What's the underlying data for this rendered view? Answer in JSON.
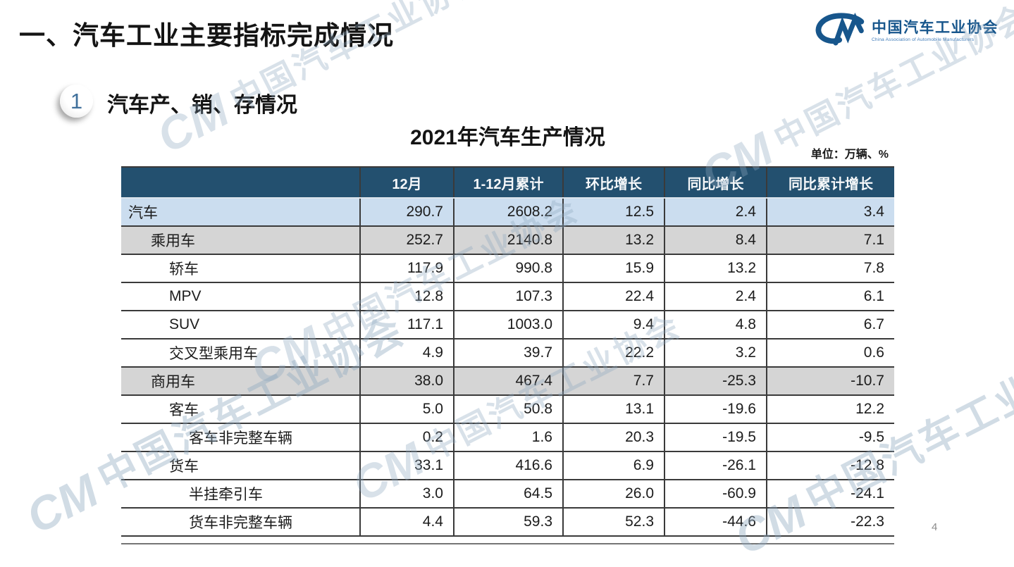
{
  "slide": {
    "title": "一、汽车工业主要指标完成情况",
    "section_number": "1",
    "section_title": "汽车产、销、存情况",
    "page_number": "4"
  },
  "logo": {
    "mark": "CM",
    "name_cn": "中国汽车工业协会",
    "name_en": "China Association of Automobile Manufacturers"
  },
  "watermark": {
    "mark": "CM",
    "text": "中国汽车工业协会"
  },
  "table": {
    "title": "2021年汽车生产情况",
    "unit_note": "单位：万辆、%",
    "columns": [
      "",
      "12月",
      "1-12月累计",
      "环比增长",
      "同比增长",
      "同比累计增长"
    ],
    "rows": [
      {
        "label": "汽车",
        "indent": 0,
        "style": "blue",
        "values": [
          "290.7",
          "2608.2",
          "12.5",
          "2.4",
          "3.4"
        ]
      },
      {
        "label": "乘用车",
        "indent": 1,
        "style": "gray",
        "values": [
          "252.7",
          "2140.8",
          "13.2",
          "8.4",
          "7.1"
        ]
      },
      {
        "label": "轿车",
        "indent": 2,
        "style": "plain",
        "values": [
          "117.9",
          "990.8",
          "15.9",
          "13.2",
          "7.8"
        ]
      },
      {
        "label": "MPV",
        "indent": 2,
        "style": "plain",
        "values": [
          "12.8",
          "107.3",
          "22.4",
          "2.4",
          "6.1"
        ]
      },
      {
        "label": "SUV",
        "indent": 2,
        "style": "plain",
        "values": [
          "117.1",
          "1003.0",
          "9.4",
          "4.8",
          "6.7"
        ]
      },
      {
        "label": "交叉型乘用车",
        "indent": 2,
        "style": "plain",
        "values": [
          "4.9",
          "39.7",
          "22.2",
          "3.2",
          "0.6"
        ]
      },
      {
        "label": "商用车",
        "indent": 1,
        "style": "gray",
        "values": [
          "38.0",
          "467.4",
          "7.7",
          "-25.3",
          "-10.7"
        ]
      },
      {
        "label": "客车",
        "indent": 2,
        "style": "plain",
        "values": [
          "5.0",
          "50.8",
          "13.1",
          "-19.6",
          "12.2"
        ]
      },
      {
        "label": "客车非完整车辆",
        "indent": 3,
        "style": "plain",
        "values": [
          "0.2",
          "1.6",
          "20.3",
          "-19.5",
          "-9.5"
        ]
      },
      {
        "label": "货车",
        "indent": 2,
        "style": "plain",
        "values": [
          "33.1",
          "416.6",
          "6.9",
          "-26.1",
          "-12.8"
        ]
      },
      {
        "label": "半挂牵引车",
        "indent": 3,
        "style": "plain",
        "values": [
          "3.0",
          "64.5",
          "26.0",
          "-60.9",
          "-24.1"
        ]
      },
      {
        "label": "货车非完整车辆",
        "indent": 3,
        "style": "plain",
        "values": [
          "4.4",
          "59.3",
          "52.3",
          "-44.6",
          "-22.3"
        ]
      }
    ]
  },
  "colors": {
    "header_bg": "#23506F",
    "row_blue": "#CBDDEF",
    "row_gray": "#D5D5D5",
    "border": "#3A3A3A",
    "logo_blue": "#17568C",
    "badge_number": "#41719C",
    "watermark": "#8FA9C0",
    "page_gray": "#8C8C8C"
  }
}
